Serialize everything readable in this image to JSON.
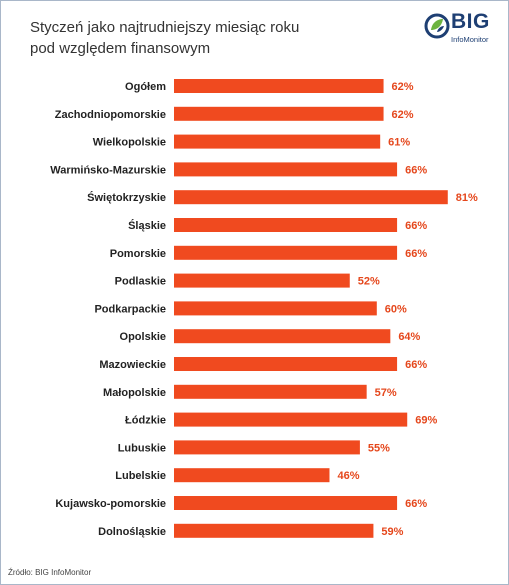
{
  "header": {
    "title_line1": "Styczeń jako najtrudniejszy miesiąc roku",
    "title_line2": "pod względem finansowym"
  },
  "logo": {
    "word": "BIG",
    "sub": "InfoMonitor",
    "icon": "circle-leaf-icon",
    "color_primary": "#1e3f73",
    "color_accent": "#6cb33f"
  },
  "source": "Źródło: BIG InfoMonitor",
  "colors": {
    "bar": "#f04a1f",
    "value_label": "#e5471c"
  },
  "chart_data": {
    "type": "bar",
    "orientation": "horizontal",
    "title": "Styczeń jako najtrudniejszy miesiąc roku pod względem finansowym",
    "categories": [
      "Ogółem",
      "Zachodniopomorskie",
      "Wielkopolskie",
      "Warmińsko-Mazurskie",
      "Świętokrzyskie",
      "Śląskie",
      "Pomorskie",
      "Podlaskie",
      "Podkarpackie",
      "Opolskie",
      "Mazowieckie",
      "Małopolskie",
      "Łódzkie",
      "Lubuskie",
      "Lubelskie",
      "Kujawsko-pomorskie",
      "Dolnośląskie"
    ],
    "values": [
      62,
      62,
      61,
      66,
      81,
      66,
      66,
      52,
      60,
      64,
      66,
      57,
      69,
      55,
      46,
      66,
      59
    ],
    "labels": [
      "62%",
      "62%",
      "61%",
      "66%",
      "81%",
      "66%",
      "66%",
      "52%",
      "60%",
      "64%",
      "66%",
      "57%",
      "69%",
      "55%",
      "46%",
      "66%",
      "59%"
    ],
    "unit": "%",
    "xlim": [
      0,
      100
    ],
    "grid": false,
    "legend": "none"
  }
}
